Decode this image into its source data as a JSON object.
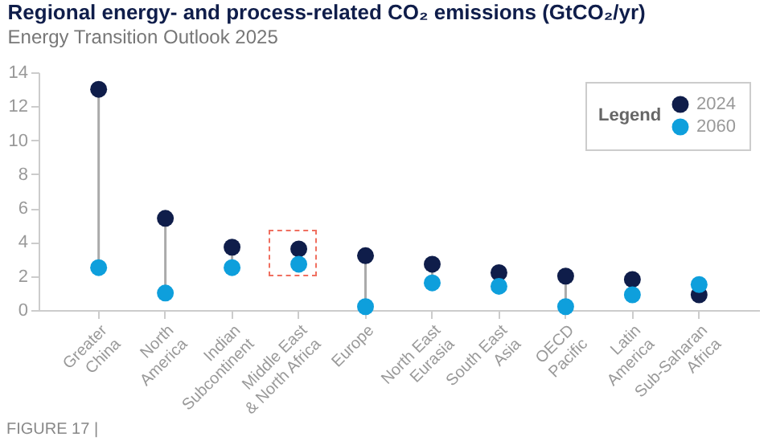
{
  "chart_data": {
    "type": "scatter",
    "title": "Regional energy- and process-related CO₂ emissions (GtCO₂/yr)",
    "subtitle": "Energy Transition Outlook 2025",
    "annotations": [
      "FIGURE 17 |"
    ],
    "legend_title": "Legend",
    "legend": "top right",
    "grid": false,
    "marker": "circle",
    "categories": [
      "Greater\nChina",
      "North\nAmerica",
      "Indian\nSubcontinent",
      "Middle East\n& North Africa",
      "Europe",
      "North East\nEurasia",
      "South East\nAsia",
      "OECD\nPacific",
      "Latin\nAmerica",
      "Sub-Saharan\nAfrica"
    ],
    "ylim": [
      0,
      14
    ],
    "yticks": [
      0,
      2,
      4,
      6,
      8,
      10,
      12,
      14
    ],
    "series": [
      {
        "name": "2024",
        "color": "#0f1d4a",
        "values": [
          13.0,
          5.4,
          3.7,
          3.6,
          3.2,
          2.7,
          2.2,
          2.0,
          1.8,
          0.9
        ]
      },
      {
        "name": "2060",
        "color": "#0e9fdc",
        "values": [
          2.5,
          1.0,
          2.5,
          2.7,
          0.2,
          1.6,
          1.4,
          0.2,
          0.9,
          1.5
        ]
      }
    ]
  }
}
